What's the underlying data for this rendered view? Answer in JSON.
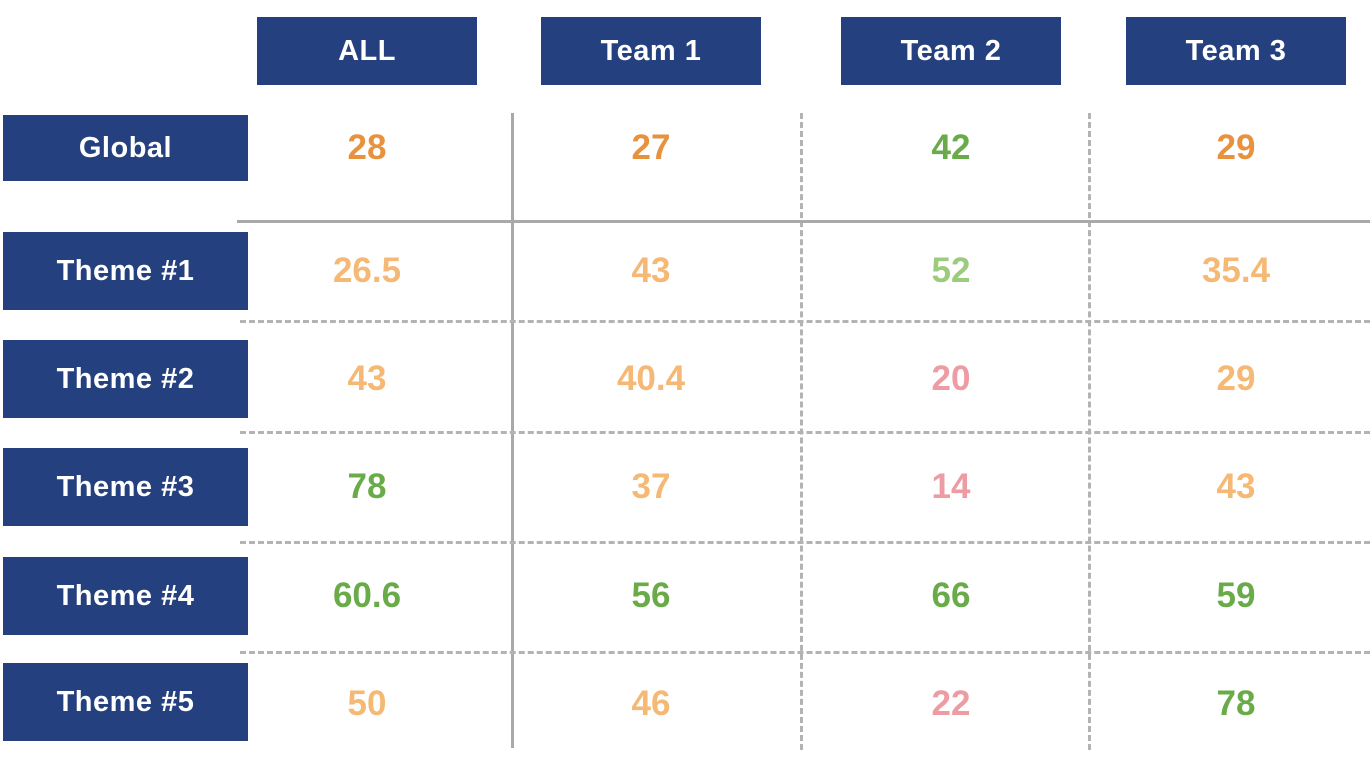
{
  "colors": {
    "header-blue": "#24407E",
    "orange-strong": "#E8923D",
    "orange-light": "#F5B975",
    "green-strong": "#69AB48",
    "green-light": "#9DCB7E",
    "pink": "#EC9CA2",
    "grid-solid": "#A9A9A9",
    "grid-dashed": "#B3B3B3"
  },
  "columns": [
    {
      "label": "ALL"
    },
    {
      "label": "Team 1"
    },
    {
      "label": "Team 2"
    },
    {
      "label": "Team 3"
    }
  ],
  "rows": [
    {
      "label": "Global",
      "values": [
        {
          "text": "28",
          "level": "orange"
        },
        {
          "text": "27",
          "level": "orange"
        },
        {
          "text": "42",
          "level": "green"
        },
        {
          "text": "29",
          "level": "orange"
        }
      ]
    },
    {
      "label": "Theme #1",
      "values": [
        {
          "text": "26.5",
          "level": "orange-light"
        },
        {
          "text": "43",
          "level": "orange-light"
        },
        {
          "text": "52",
          "level": "green-light"
        },
        {
          "text": "35.4",
          "level": "orange-light"
        }
      ]
    },
    {
      "label": "Theme #2",
      "values": [
        {
          "text": "43",
          "level": "orange-light"
        },
        {
          "text": "40.4",
          "level": "orange-light"
        },
        {
          "text": "20",
          "level": "pink"
        },
        {
          "text": "29",
          "level": "orange-light"
        }
      ]
    },
    {
      "label": "Theme #3",
      "values": [
        {
          "text": "78",
          "level": "green"
        },
        {
          "text": "37",
          "level": "orange-light"
        },
        {
          "text": "14",
          "level": "pink"
        },
        {
          "text": "43",
          "level": "orange-light"
        }
      ]
    },
    {
      "label": "Theme #4",
      "values": [
        {
          "text": "60.6",
          "level": "green"
        },
        {
          "text": "56",
          "level": "green"
        },
        {
          "text": "66",
          "level": "green"
        },
        {
          "text": "59",
          "level": "green"
        }
      ]
    },
    {
      "label": "Theme #5",
      "values": [
        {
          "text": "50",
          "level": "orange-light"
        },
        {
          "text": "46",
          "level": "orange-light"
        },
        {
          "text": "22",
          "level": "pink"
        },
        {
          "text": "78",
          "level": "green"
        }
      ]
    }
  ],
  "chart_data": {
    "type": "table",
    "columns": [
      "ALL",
      "Team 1",
      "Team 2",
      "Team 3"
    ],
    "rows": [
      "Global",
      "Theme #1",
      "Theme #2",
      "Theme #3",
      "Theme #4",
      "Theme #5"
    ],
    "values": [
      [
        28,
        27,
        42,
        29
      ],
      [
        26.5,
        43,
        52,
        35.4
      ],
      [
        43,
        40.4,
        20,
        29
      ],
      [
        78,
        37,
        14,
        43
      ],
      [
        60.6,
        56,
        66,
        59
      ],
      [
        50,
        46,
        22,
        78
      ]
    ],
    "cell_colors": [
      [
        "orange",
        "orange",
        "green",
        "orange"
      ],
      [
        "orange-light",
        "orange-light",
        "green-light",
        "orange-light"
      ],
      [
        "orange-light",
        "orange-light",
        "pink",
        "orange-light"
      ],
      [
        "green",
        "orange-light",
        "pink",
        "orange-light"
      ],
      [
        "green",
        "green",
        "green",
        "green"
      ],
      [
        "orange-light",
        "orange-light",
        "pink",
        "green"
      ]
    ],
    "color_legend_implied": "green = good score, orange = medium score, pink = low score; strong shades in Global/aggregate cells, light shades in theme cells"
  }
}
